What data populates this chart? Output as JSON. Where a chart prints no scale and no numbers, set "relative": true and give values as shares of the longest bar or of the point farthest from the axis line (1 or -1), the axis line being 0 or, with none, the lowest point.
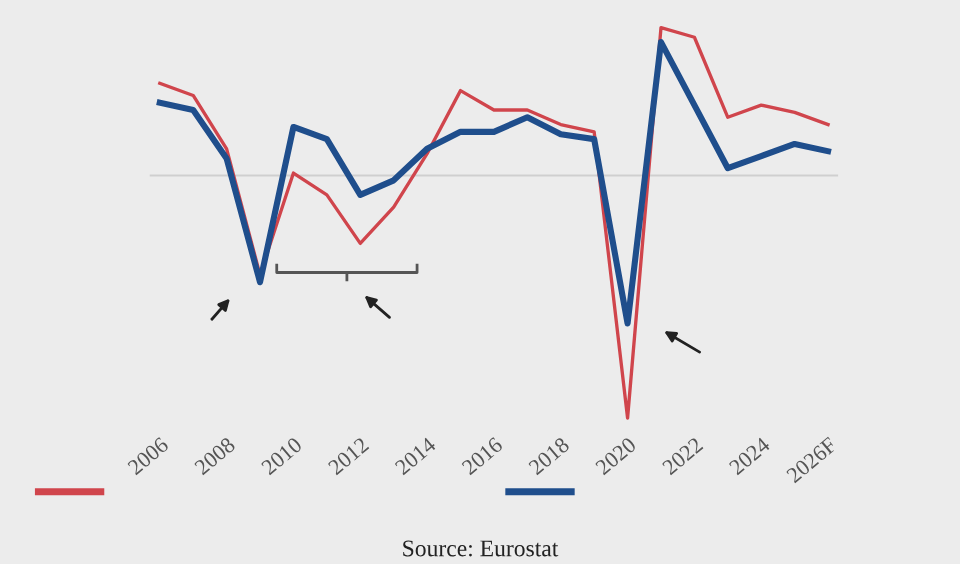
{
  "chart_data": {
    "type": "line",
    "relative": true,
    "categories": [
      "2006",
      null,
      "2008",
      null,
      "2010",
      null,
      "2012",
      null,
      "2014",
      null,
      "2016",
      null,
      "2018",
      null,
      "2020",
      null,
      "2022",
      null,
      "2024",
      null,
      "2026F"
    ],
    "series": [
      {
        "color": "#d0454c",
        "values": [
          0.38,
          0.33,
          0.11,
          -0.41,
          0.01,
          -0.08,
          -0.28,
          -0.13,
          0.09,
          0.35,
          0.27,
          0.27,
          0.21,
          0.18,
          -1.0,
          0.61,
          0.57,
          0.24,
          0.29,
          0.26,
          0.21
        ]
      },
      {
        "color": "#1f4e8c",
        "values": [
          0.3,
          0.27,
          0.07,
          -0.44,
          0.2,
          0.15,
          -0.08,
          -0.02,
          0.11,
          0.18,
          0.18,
          0.24,
          0.17,
          0.15,
          -0.61,
          0.55,
          0.29,
          0.03,
          0.08,
          0.13,
          0.1
        ]
      }
    ],
    "ref_lines": [
      {
        "axis": "y",
        "value": 0,
        "color": "#cfcfcf"
      }
    ],
    "annotations": [
      "Source: Eurostat"
    ]
  }
}
